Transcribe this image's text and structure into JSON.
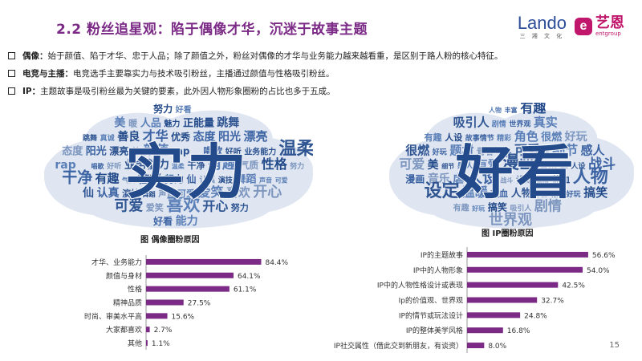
{
  "header": {
    "title": "2.2 粉丝追星观：陷于偶像才华，沉迷于故事主题",
    "logo_lando": "Lando",
    "logo_lando_sub": "三 湘 文 化",
    "logo_yien_badge": "e",
    "logo_yien_name": "艺恩",
    "logo_yien_en": "entgroup"
  },
  "bullets": [
    {
      "label": "偶像：",
      "text": "始于颜值、陷于才华、忠于人品；除了颜值之外，粉丝对偶像的才华与业务能力越来越看重，是区别于路人粉的核心特征。"
    },
    {
      "label": "电竞与主播：",
      "text": "电竞选手主要靠实力与技术吸引粉丝，主播通过颜值与性格吸引粉丝。"
    },
    {
      "label": "IP：",
      "text": "主题故事是吸引粉丝最为关键的要素，此外因人物形象圈粉的占比也多于五成。"
    }
  ],
  "wordclouds": [
    {
      "big": [
        "实",
        "力"
      ],
      "words": [
        "努力",
        "好看",
        "能力",
        "可爱",
        "歌",
        "美",
        "暖",
        "人品",
        "魅力",
        "正能量",
        "跳舞",
        "真诚",
        "善良",
        "才华",
        "优秀",
        "态度",
        "阳光",
        "漂亮",
        "帅",
        "颜值",
        "rap",
        "唱歌",
        "好听",
        "业务能力",
        "温柔",
        "干净",
        "有趣",
        "气质",
        "性格",
        "努力",
        "仙",
        "认真",
        "演技",
        "舞蹈",
        "声音",
        "可爱",
        "爱笑",
        "喜欢",
        "开心"
      ],
      "caption": "图  偶像圈粉原因"
    },
    {
      "big": [
        "好",
        "看"
      ],
      "words": [
        "热血",
        "人物",
        "丰富",
        "有趣",
        "好玩",
        "搞笑",
        "吸引人",
        "剧情",
        "世界观",
        "真实",
        "画风",
        "有趣",
        "人设",
        "故事情节",
        "精彩",
        "角色",
        "很燃",
        "好玩",
        "题材",
        "青春",
        "世界",
        "可爱",
        "美",
        "细节",
        "感人",
        "有爱",
        "漫画",
        "音乐",
        "虐",
        "人设",
        "战斗",
        "设定",
        "温暖"
      ],
      "caption": "图  IP圈粉原因"
    }
  ],
  "chart_data": [
    {
      "type": "bar",
      "orientation": "horizontal",
      "categories": [
        "才华、业务能力",
        "颜值与身材",
        "性格",
        "精神品质",
        "时尚、审美水平高",
        "大家都喜欢",
        "其他"
      ],
      "values": [
        84.4,
        64.1,
        61.1,
        27.5,
        15.6,
        2.7,
        1.1
      ],
      "labels": [
        "84.4%",
        "64.1%",
        "61.1%",
        "27.5%",
        "15.6%",
        "2.7%",
        "1.1%"
      ],
      "xlim": [
        0,
        100
      ],
      "color": "#7b2a86"
    },
    {
      "type": "bar",
      "orientation": "horizontal",
      "categories": [
        "IP的主题故事",
        "IP中的人物形象",
        "IP中的人物性格设计或表现",
        "Ip的价值观、世界观",
        "IP的情节或玩法设计",
        "IP的整体美学风格",
        "IP社交属性（借此交到新朋友，有谈资）"
      ],
      "values": [
        56.6,
        54.0,
        42.5,
        32.7,
        24.8,
        16.8,
        8.0
      ],
      "labels": [
        "56.6%",
        "54.0%",
        "42.5%",
        "32.7%",
        "24.8%",
        "16.8%",
        "8.0%"
      ],
      "xlim": [
        0,
        60
      ],
      "color": "#7b2a86"
    }
  ],
  "page_number": "15",
  "colors": {
    "accent": "#7b2a86",
    "cloud_dark": "#234a8a",
    "cloud_mid": "#5a7fb8",
    "cloud_light": "#8aa3c8"
  }
}
